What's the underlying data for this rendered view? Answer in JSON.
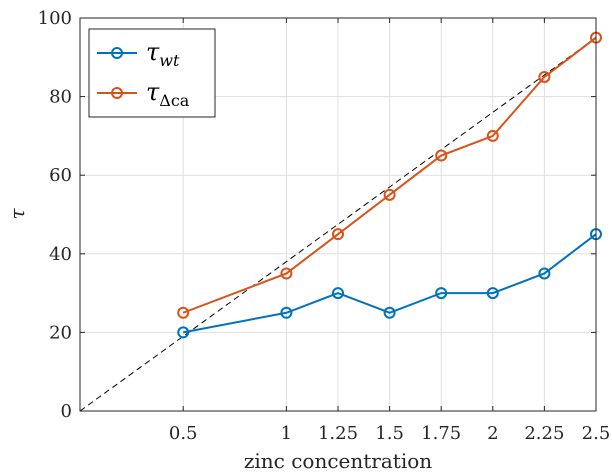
{
  "chart_data": {
    "type": "line",
    "xlabel": "zinc concentration",
    "ylabel": "τ",
    "xlim": [
      0.0,
      2.5
    ],
    "ylim": [
      0,
      100
    ],
    "xticks": [
      0.5,
      1,
      1.25,
      1.5,
      1.75,
      2,
      2.25,
      2.5
    ],
    "xtick_labels": [
      "0.5",
      "1",
      "1.25",
      "1.5",
      "1.75",
      "2",
      "2.25",
      "2.5"
    ],
    "yticks": [
      0,
      20,
      40,
      60,
      80,
      100
    ],
    "ytick_labels": [
      "0",
      "20",
      "40",
      "60",
      "80",
      "100"
    ],
    "grid": true,
    "legend_position": "top-left",
    "x": [
      0.5,
      1,
      1.25,
      1.5,
      1.75,
      2,
      2.25,
      2.5
    ],
    "series": [
      {
        "name": "τ_wt",
        "name_main": "τ",
        "name_sub": "wt",
        "color": "#0072BD",
        "values": [
          20,
          25,
          30,
          25,
          30,
          30,
          35,
          45
        ]
      },
      {
        "name": "τ_Δca",
        "name_main": "τ",
        "name_sub": "Δca",
        "color": "#D95319",
        "values": [
          25,
          35,
          45,
          55,
          65,
          70,
          85,
          95
        ]
      }
    ],
    "reference_line": {
      "style": "dashed",
      "color": "#000000",
      "x": [
        0.0,
        2.5
      ],
      "y": [
        0,
        95
      ]
    }
  }
}
